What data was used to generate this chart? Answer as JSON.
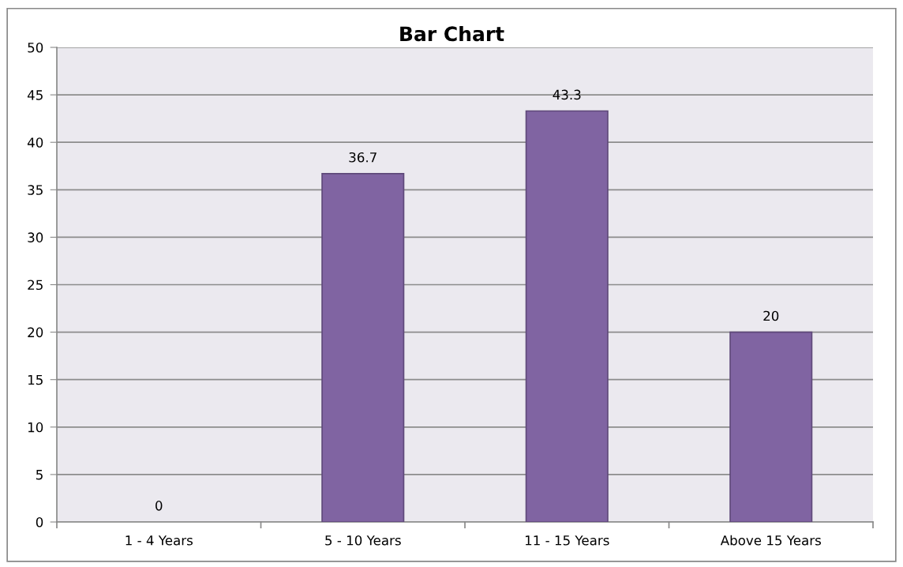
{
  "chart_data": {
    "type": "bar",
    "title": "Bar Chart",
    "categories": [
      "1 - 4 Years",
      "5 - 10 Years",
      "11 - 15 Years",
      "Above 15 Years"
    ],
    "values": [
      0,
      36.7,
      43.3,
      20
    ],
    "color": "#8064a2",
    "ylim": [
      0,
      50
    ],
    "yticks": [
      0,
      5,
      10,
      15,
      20,
      25,
      30,
      35,
      40,
      45,
      50
    ],
    "grid": "y",
    "data_labels": true
  }
}
